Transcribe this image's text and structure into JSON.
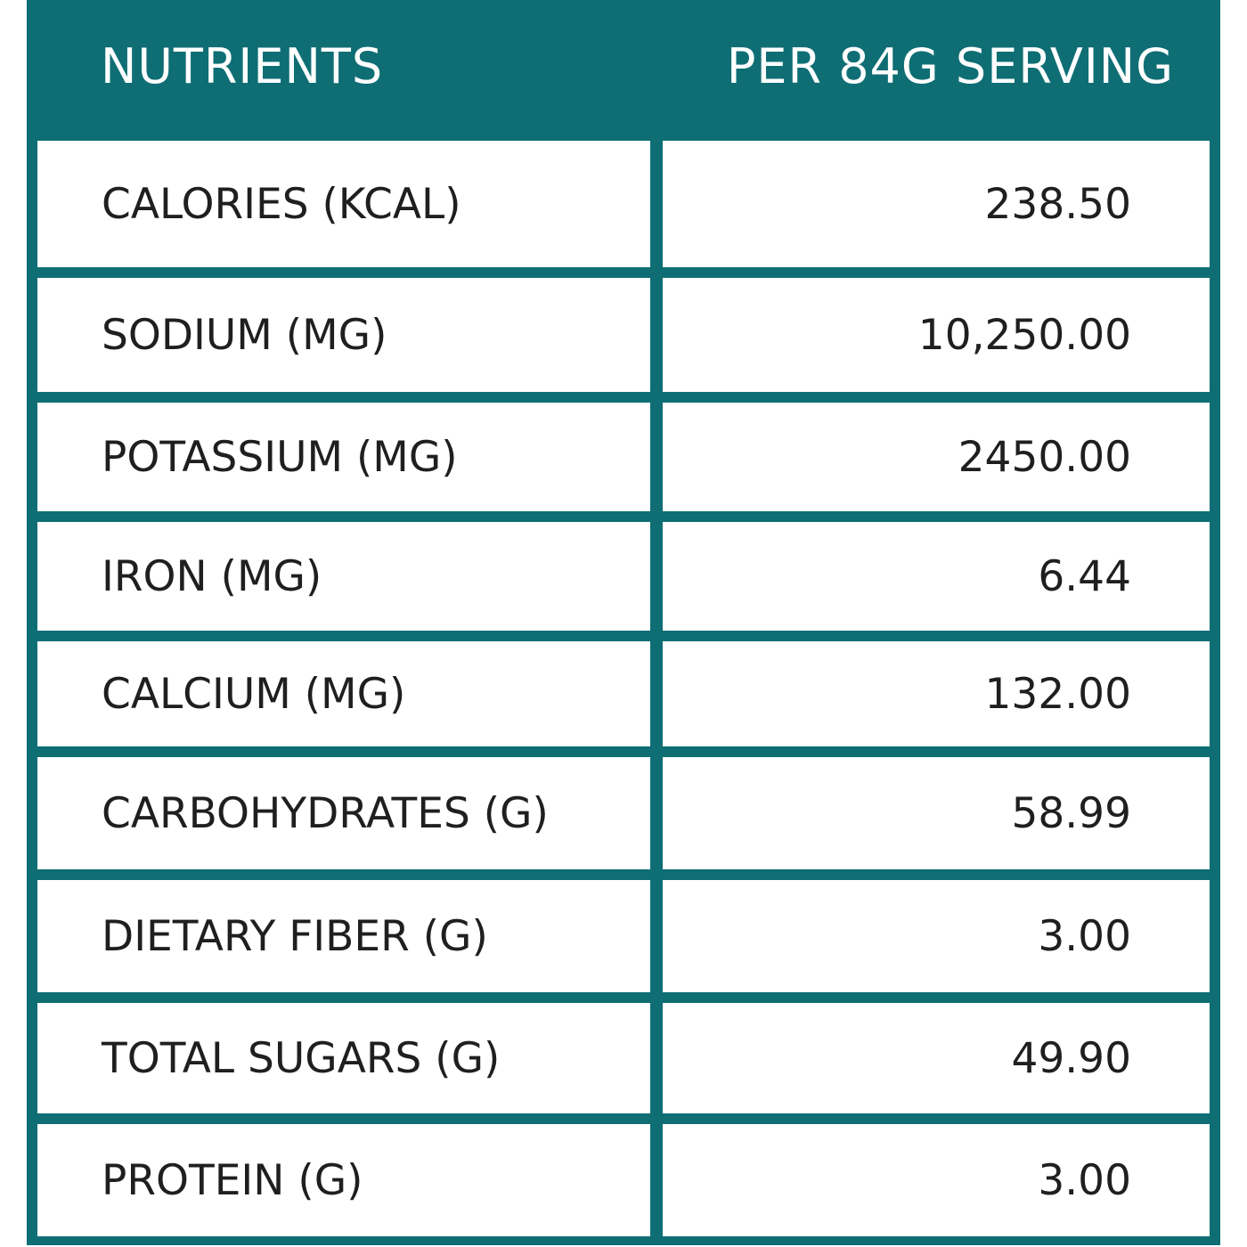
{
  "table": {
    "header": {
      "nutrients_label": "NUTRIENTS",
      "serving_label": "PER 84G SERVING"
    },
    "rows": [
      {
        "nutrient": "CALORIES (KCAL)",
        "value": "238.50"
      },
      {
        "nutrient": "SODIUM (MG)",
        "value": "10,250.00"
      },
      {
        "nutrient": "POTASSIUM (MG)",
        "value": "2450.00"
      },
      {
        "nutrient": "IRON (MG)",
        "value": "6.44"
      },
      {
        "nutrient": "CALCIUM (MG)",
        "value": "132.00"
      },
      {
        "nutrient": "CARBOHYDRATES (G)",
        "value": "58.99"
      },
      {
        "nutrient": "DIETARY FIBER (G)",
        "value": "3.00"
      },
      {
        "nutrient": "TOTAL SUGARS (G)",
        "value": "49.90"
      },
      {
        "nutrient": "PROTEIN (G)",
        "value": "3.00"
      }
    ]
  },
  "colors": {
    "frame": "#0f6e74",
    "cell": "#ffffff",
    "text": "#1f1f1f",
    "header_text": "#ffffff"
  }
}
